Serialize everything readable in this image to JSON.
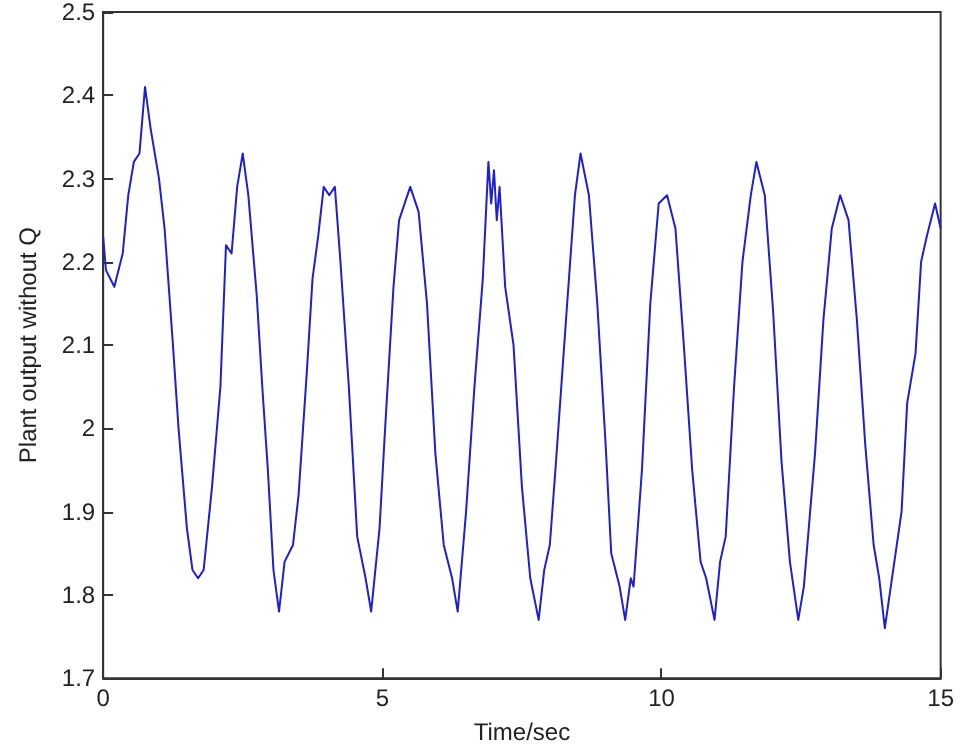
{
  "chart_data": {
    "type": "line",
    "xlabel": "Time/sec",
    "ylabel": "Plant output without Q",
    "xlim": [
      0,
      15
    ],
    "xticks": [
      0,
      5,
      10,
      15
    ],
    "ylim": [
      1.7,
      2.5
    ],
    "yticks": [
      1.7,
      1.8,
      1.9,
      2,
      2.1,
      2.2,
      2.3,
      2.4,
      2.5
    ],
    "grid": false,
    "marker": "none",
    "line_style": "solid",
    "series": [
      {
        "color": "#1f1fd0",
        "x": [
          0,
          0.05,
          0.2,
          0.35,
          0.45,
          0.55,
          0.65,
          0.75,
          0.85,
          1.0,
          1.1,
          1.25,
          1.35,
          1.5,
          1.6,
          1.7,
          1.8,
          1.95,
          2.1,
          2.2,
          2.3,
          2.4,
          2.5,
          2.6,
          2.75,
          2.85,
          2.95,
          3.05,
          3.15,
          3.25,
          3.4,
          3.5,
          3.65,
          3.75,
          3.85,
          3.95,
          4.05,
          4.15,
          4.25,
          4.4,
          4.55,
          4.7,
          4.8,
          4.95,
          5.05,
          5.2,
          5.3,
          5.5,
          5.65,
          5.8,
          5.95,
          6.1,
          6.25,
          6.35,
          6.5,
          6.65,
          6.8,
          6.9,
          6.95,
          7.0,
          7.05,
          7.1,
          7.2,
          7.35,
          7.5,
          7.65,
          7.8,
          7.9,
          8.0,
          8.1,
          8.3,
          8.45,
          8.55,
          8.7,
          8.85,
          9.0,
          9.1,
          9.25,
          9.35,
          9.45,
          9.5,
          9.65,
          9.8,
          9.95,
          10.1,
          10.25,
          10.4,
          10.55,
          10.7,
          10.8,
          10.95,
          11.05,
          11.15,
          11.3,
          11.45,
          11.6,
          11.7,
          11.85,
          12.0,
          12.15,
          12.3,
          12.45,
          12.55,
          12.75,
          12.9,
          13.05,
          13.2,
          13.35,
          13.5,
          13.65,
          13.8,
          13.9,
          14.0,
          14.15,
          14.3,
          14.4,
          14.55,
          14.65,
          14.75,
          14.9,
          15.0
        ],
        "values": [
          2.23,
          2.19,
          2.17,
          2.21,
          2.28,
          2.32,
          2.33,
          2.41,
          2.36,
          2.3,
          2.24,
          2.1,
          2.0,
          1.88,
          1.83,
          1.82,
          1.83,
          1.93,
          2.05,
          2.22,
          2.21,
          2.29,
          2.33,
          2.28,
          2.16,
          2.05,
          1.95,
          1.83,
          1.78,
          1.84,
          1.86,
          1.92,
          2.07,
          2.18,
          2.23,
          2.29,
          2.28,
          2.29,
          2.2,
          2.05,
          1.87,
          1.82,
          1.78,
          1.88,
          2.0,
          2.17,
          2.25,
          2.29,
          2.26,
          2.15,
          1.97,
          1.86,
          1.82,
          1.78,
          1.9,
          2.05,
          2.18,
          2.32,
          2.27,
          2.31,
          2.25,
          2.29,
          2.17,
          2.1,
          1.93,
          1.82,
          1.77,
          1.83,
          1.86,
          1.95,
          2.14,
          2.28,
          2.33,
          2.28,
          2.15,
          1.98,
          1.85,
          1.81,
          1.77,
          1.82,
          1.81,
          1.95,
          2.15,
          2.27,
          2.28,
          2.24,
          2.1,
          1.95,
          1.84,
          1.82,
          1.77,
          1.84,
          1.87,
          2.05,
          2.2,
          2.28,
          2.32,
          2.28,
          2.14,
          1.96,
          1.84,
          1.77,
          1.81,
          1.97,
          2.13,
          2.24,
          2.28,
          2.25,
          2.13,
          1.98,
          1.86,
          1.82,
          1.76,
          1.83,
          1.9,
          2.03,
          2.09,
          2.2,
          2.23,
          2.27,
          2.24
        ]
      }
    ]
  }
}
